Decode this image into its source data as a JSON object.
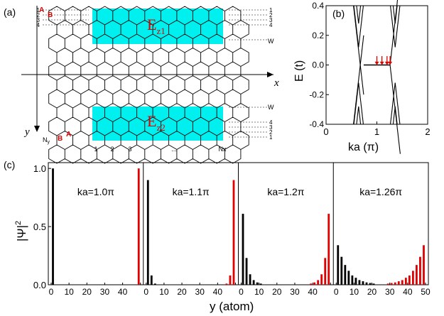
{
  "panel_a": {
    "label": "(a)",
    "field_top": "E",
    "field_top_sub": "z1",
    "field_bottom": "E",
    "field_bottom_sub": "z2",
    "axis_x": "x",
    "axis_y": "y",
    "atom_a": "A",
    "atom_b": "B",
    "atom_b2": "B",
    "atom_a2": "A",
    "ny": "N",
    "ny_sub": "y",
    "w_top": "W",
    "w_bottom": "W",
    "left_rows": [
      "1",
      "2",
      "3",
      "4"
    ],
    "right_rows_top": [
      "1",
      "2",
      "3",
      "4"
    ],
    "right_rows_bottom": [
      "4",
      "3",
      "2",
      "1"
    ],
    "columns": [
      "1",
      "2",
      "3",
      "...",
      "Nx"
    ],
    "colors": {
      "field": "#00f0f0",
      "atom": "#e00000"
    }
  },
  "panel_b": {
    "label": "(b)",
    "ylabel": "E (t)",
    "xlabel": "ka (π)",
    "xticks": [
      "0",
      "1",
      "2"
    ],
    "yticks": [
      "0.4",
      "0.2",
      "0.0",
      "-0.2",
      "-0.4"
    ],
    "arrow_color": "#e00000"
  },
  "panel_c": {
    "label": "(c)",
    "ylabel": "|Ψ|",
    "ylabel_sup": "2",
    "xlabel": "y (atom)",
    "yticks": [
      "1.0",
      "0.5",
      "0.0"
    ],
    "xticks": [
      "0",
      "10",
      "20",
      "30",
      "40",
      "50"
    ],
    "subplots": [
      "ka=1.0π",
      "ka=1.1π",
      "ka=1.2π",
      "ka=1.26π"
    ]
  },
  "chart_data": [
    {
      "type": "line",
      "title": "",
      "xlabel": "ka (π)",
      "ylabel": "E (t)",
      "xlim": [
        0,
        2
      ],
      "ylim": [
        -0.4,
        0.4
      ],
      "flat_band": {
        "x": [
          0.74,
          1.26
        ],
        "y": 0.0
      },
      "arrows_at_x": [
        1.0,
        1.1,
        1.2,
        1.26
      ]
    },
    {
      "type": "bar",
      "xlabel": "y (atom)",
      "ylabel": "|Ψ|^2",
      "xlim": [
        0,
        50
      ],
      "ylim": [
        0,
        1.05
      ],
      "series": [
        {
          "name": "ka=1.0π",
          "black": [
            [
              1,
              1.0
            ]
          ],
          "red": [
            [
              49,
              1.0
            ]
          ]
        },
        {
          "name": "ka=1.1π",
          "black": [
            [
              1,
              0.9
            ],
            [
              3,
              0.08
            ],
            [
              5,
              0.01
            ]
          ],
          "red": [
            [
              45,
              0.01
            ],
            [
              47,
              0.08
            ],
            [
              49,
              0.9
            ]
          ]
        },
        {
          "name": "ka=1.2π",
          "black": [
            [
              1,
              0.61
            ],
            [
              3,
              0.23
            ],
            [
              5,
              0.09
            ],
            [
              7,
              0.04
            ],
            [
              9,
              0.02
            ],
            [
              11,
              0.01
            ]
          ],
          "red": [
            [
              39,
              0.01
            ],
            [
              41,
              0.02
            ],
            [
              43,
              0.04
            ],
            [
              45,
              0.09
            ],
            [
              47,
              0.23
            ],
            [
              49,
              0.61
            ]
          ]
        },
        {
          "name": "ka=1.26π",
          "black": [
            [
              1,
              0.34
            ],
            [
              3,
              0.24
            ],
            [
              5,
              0.17
            ],
            [
              7,
              0.12
            ],
            [
              9,
              0.08
            ],
            [
              11,
              0.06
            ],
            [
              13,
              0.04
            ],
            [
              15,
              0.03
            ],
            [
              17,
              0.02
            ],
            [
              19,
              0.015
            ],
            [
              21,
              0.01
            ]
          ],
          "red": [
            [
              29,
              0.01
            ],
            [
              31,
              0.015
            ],
            [
              33,
              0.02
            ],
            [
              35,
              0.03
            ],
            [
              37,
              0.04
            ],
            [
              39,
              0.06
            ],
            [
              41,
              0.08
            ],
            [
              43,
              0.12
            ],
            [
              45,
              0.17
            ],
            [
              47,
              0.24
            ],
            [
              49,
              0.34
            ]
          ]
        }
      ]
    }
  ]
}
